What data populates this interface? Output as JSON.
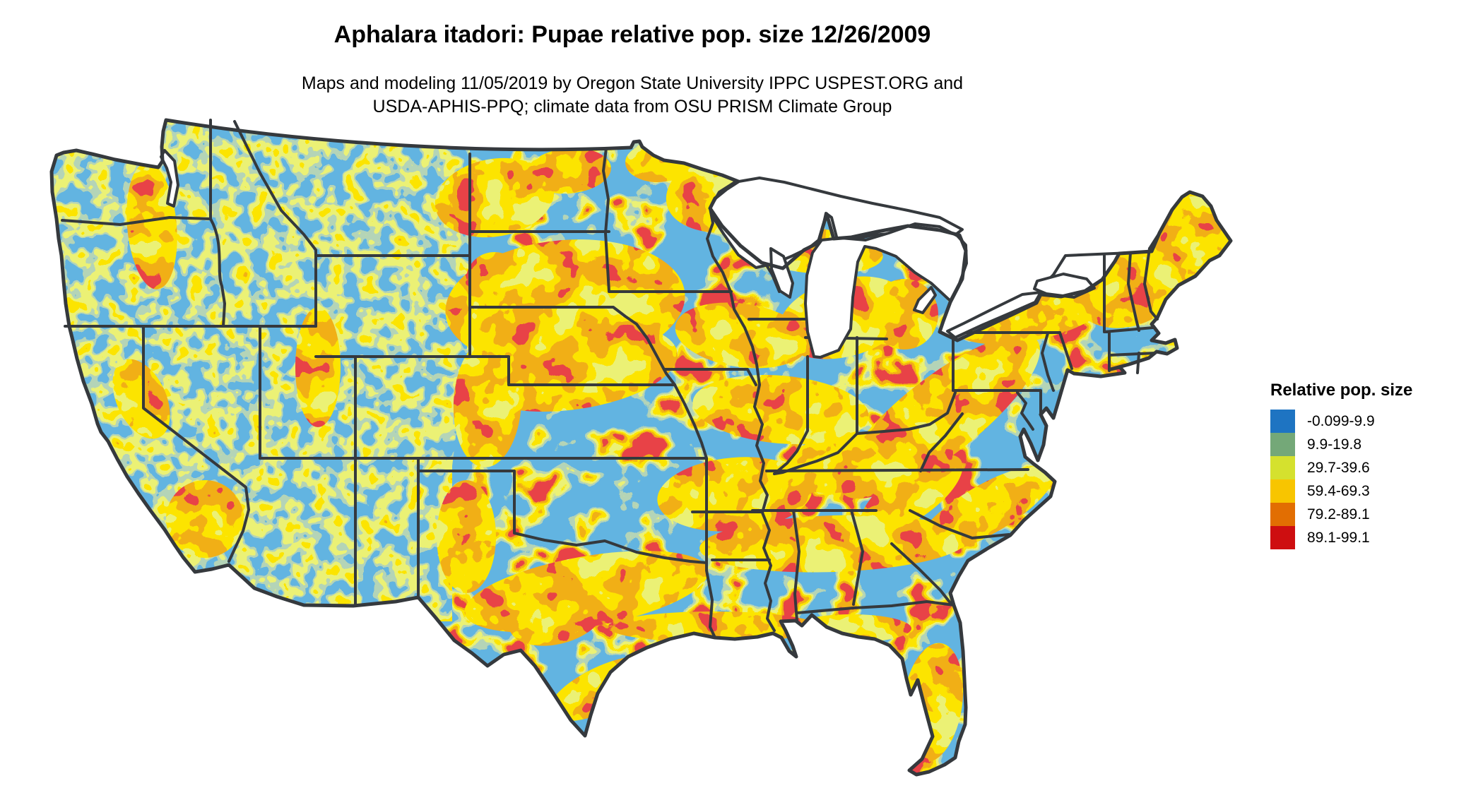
{
  "header": {
    "title": "Aphalara itadori: Pupae relative pop. size 12/26/2009",
    "subtitle_line1": "Maps and modeling 11/05/2019 by Oregon State University IPPC USPEST.ORG and",
    "subtitle_line2": "USDA-APHIS-PPQ; climate data from OSU PRISM Climate Group"
  },
  "legend": {
    "title": "Relative pop. size",
    "items": [
      {
        "label": "-0.099-9.9",
        "color": "#1E74C2"
      },
      {
        "label": "9.9-19.8",
        "color": "#74A878"
      },
      {
        "label": "29.7-39.6",
        "color": "#D5E12E"
      },
      {
        "label": "59.4-69.3",
        "color": "#F8C500"
      },
      {
        "label": "79.2-89.1",
        "color": "#E26E02"
      },
      {
        "label": "89.1-99.1",
        "color": "#CE0E10"
      }
    ]
  },
  "map": {
    "region": "Contiguous United States",
    "water_and_background_color": "#FFFFFF",
    "boundary_color": "#35393D"
  }
}
